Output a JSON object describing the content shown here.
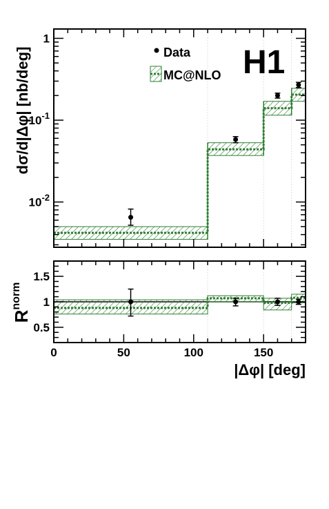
{
  "colors": {
    "mc": "#2e7d32",
    "data": "#000000",
    "frame": "#000000"
  },
  "logo": "H1",
  "chart_data": [
    {
      "name": "cross-section",
      "type": "histogram",
      "ylabel": "dσ/d|Δφ| [nb/deg]",
      "yscale": "log",
      "ylim": [
        0.0028,
        1.3
      ],
      "xlim": [
        0,
        180
      ],
      "yticks": [
        {
          "value": 1,
          "label": "1"
        },
        {
          "value": 0.1,
          "label": "10-1"
        },
        {
          "value": 0.01,
          "label": "10-2"
        }
      ],
      "legend": {
        "placement": "top-center",
        "entries": [
          "Data",
          "MC@NLO"
        ]
      },
      "bins": [
        [
          0,
          110
        ],
        [
          110,
          150
        ],
        [
          150,
          170
        ],
        [
          170,
          180
        ]
      ],
      "data": {
        "name": "Data",
        "x": [
          55,
          130,
          160,
          175
        ],
        "y": [
          0.0065,
          0.058,
          0.2,
          0.27
        ],
        "y_low": [
          0.0052,
          0.053,
          0.186,
          0.25
        ],
        "y_high": [
          0.0082,
          0.063,
          0.214,
          0.29
        ]
      },
      "mc": {
        "name": "MC@NLO",
        "central": [
          0.0042,
          0.044,
          0.14,
          0.205
        ],
        "low": [
          0.0035,
          0.037,
          0.115,
          0.17
        ],
        "high": [
          0.005,
          0.053,
          0.17,
          0.245
        ]
      }
    },
    {
      "name": "ratio",
      "type": "histogram",
      "ylabel": "Rnorm",
      "xlabel": "|Δφ| [deg]",
      "yscale": "linear",
      "ylim": [
        0.2,
        1.8
      ],
      "xlim": [
        0,
        180
      ],
      "yticks": [
        {
          "value": 1.5,
          "label": "1.5"
        },
        {
          "value": 1,
          "label": "1"
        },
        {
          "value": 0.5,
          "label": "0.5"
        }
      ],
      "xticks": [
        {
          "value": 0,
          "label": "0"
        },
        {
          "value": 50,
          "label": "50"
        },
        {
          "value": 100,
          "label": "100"
        },
        {
          "value": 150,
          "label": "150"
        }
      ],
      "bins": [
        [
          0,
          110
        ],
        [
          110,
          150
        ],
        [
          150,
          170
        ],
        [
          170,
          180
        ]
      ],
      "data": {
        "x": [
          55,
          130,
          160,
          175
        ],
        "y": [
          1.0,
          1.0,
          1.0,
          1.0
        ],
        "y_low": [
          0.72,
          0.92,
          0.93,
          0.95
        ],
        "y_high": [
          1.25,
          1.07,
          1.07,
          1.05
        ],
        "band_low": [
          0.98,
          0.97,
          0.97,
          0.97
        ],
        "band_high": [
          1.02,
          1.03,
          1.03,
          1.03
        ]
      },
      "mc": {
        "central": [
          0.88,
          1.07,
          0.98,
          1.08
        ],
        "low": [
          0.76,
          1.0,
          0.84,
          0.98
        ],
        "high": [
          1.04,
          1.12,
          1.07,
          1.15
        ]
      }
    }
  ]
}
